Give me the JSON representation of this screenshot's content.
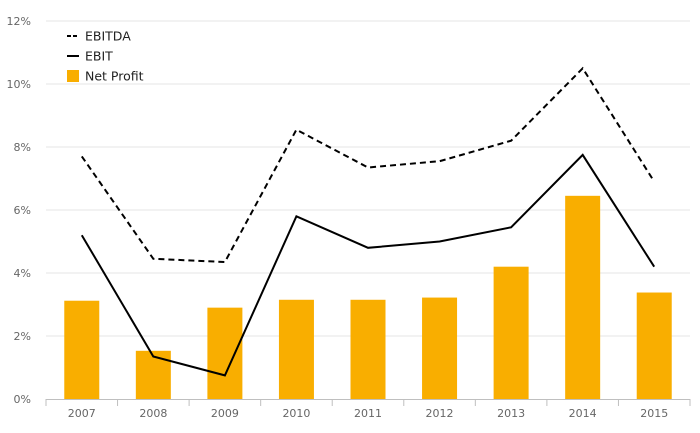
{
  "chart_data": {
    "type": "bar",
    "categories": [
      "2007",
      "2008",
      "2009",
      "2010",
      "2011",
      "2012",
      "2013",
      "2014",
      "2015"
    ],
    "ylim": [
      0,
      12
    ],
    "y_ticks": [
      0,
      2,
      4,
      6,
      8,
      10,
      12
    ],
    "y_tick_labels": [
      "0%",
      "2%",
      "4%",
      "6%",
      "8%",
      "10%",
      "12%"
    ],
    "grid": true,
    "legend_position": "top-left",
    "series": [
      {
        "name": "EBITDA",
        "type": "line",
        "style": "dashed",
        "color": "#000000",
        "values": [
          7.7,
          4.45,
          4.35,
          8.55,
          7.35,
          7.55,
          8.2,
          10.5,
          6.9
        ]
      },
      {
        "name": "EBIT",
        "type": "line",
        "style": "solid",
        "color": "#000000",
        "values": [
          5.2,
          1.35,
          0.75,
          5.8,
          4.8,
          5.0,
          5.45,
          7.75,
          4.2
        ]
      },
      {
        "name": "Net Profit",
        "type": "bar",
        "color": "#F9AE00",
        "values": [
          3.12,
          1.53,
          2.9,
          3.15,
          3.15,
          3.22,
          4.2,
          6.45,
          3.38
        ]
      }
    ]
  }
}
